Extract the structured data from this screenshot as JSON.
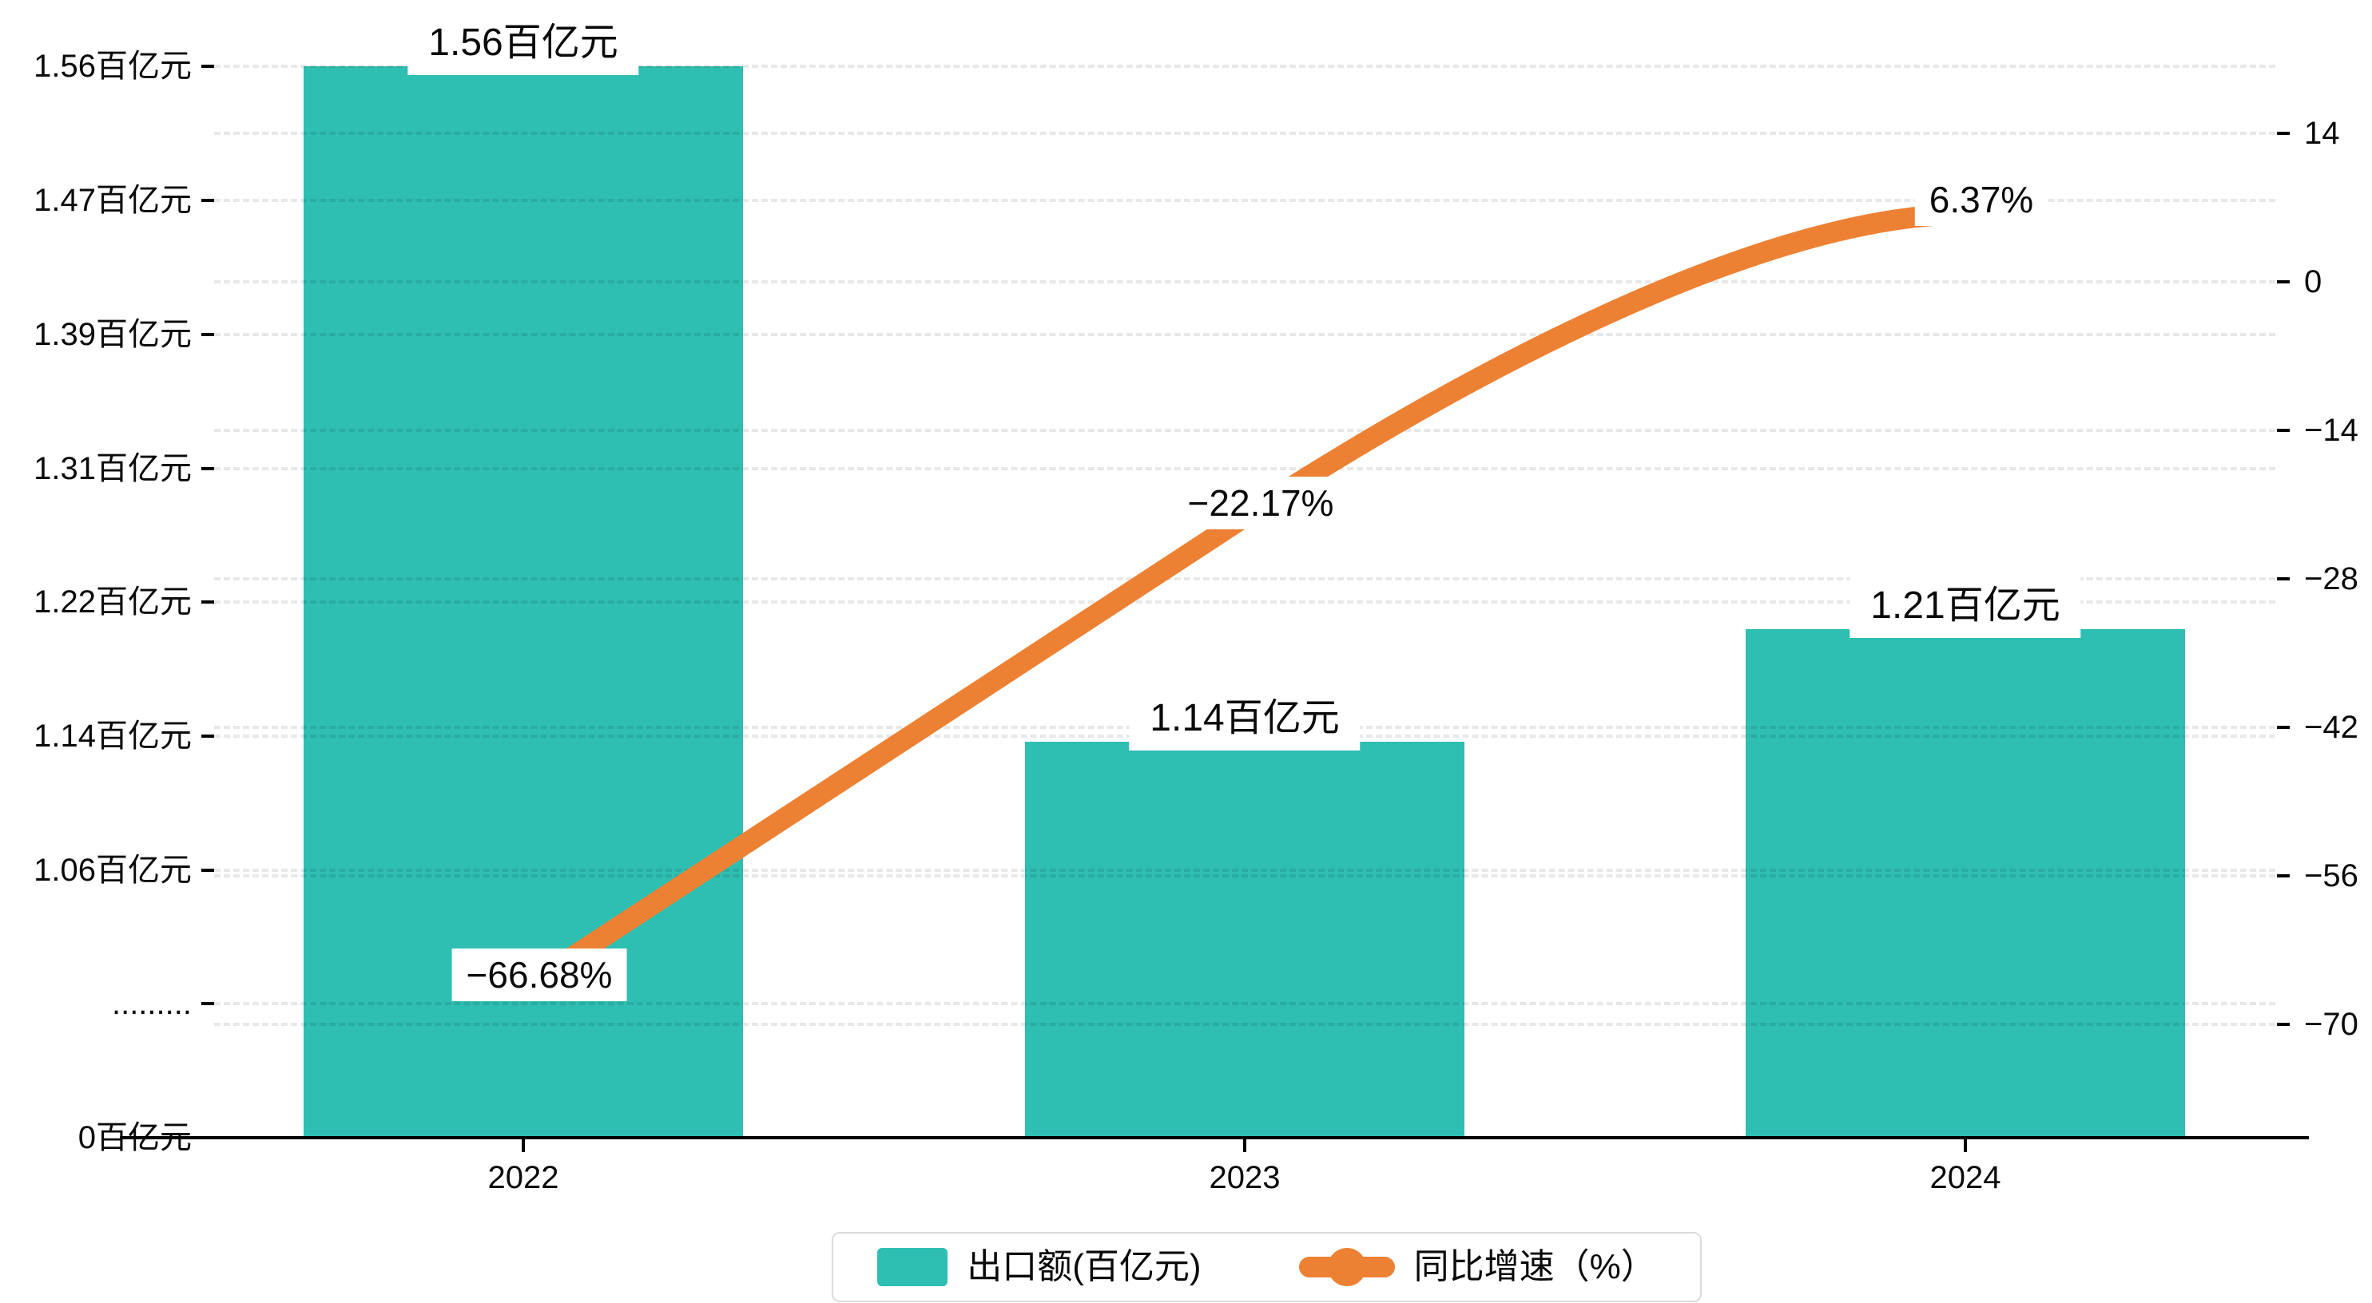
{
  "chart_data": {
    "type": "combo-bar-line",
    "categories": [
      "2022",
      "2023",
      "2024"
    ],
    "series": [
      {
        "name": "出口额(百亿元)",
        "type": "bar",
        "values": [
          1.56,
          1.14,
          1.21
        ],
        "labels": [
          "1.56百亿元",
          "1.14百亿元",
          "1.21百亿元"
        ],
        "color": "#2FBEB2",
        "axis": "left"
      },
      {
        "name": "同比增速（%）",
        "type": "line",
        "values": [
          -66.68,
          -22.17,
          6.37
        ],
        "labels": [
          "−66.68%",
          "−22.17%",
          "6.37%"
        ],
        "color": "#ED8133",
        "axis": "right"
      }
    ],
    "left_axis": {
      "tick_labels": [
        "1.56百亿元",
        "1.47百亿元",
        "1.39百亿元",
        "1.31百亿元",
        "1.22百亿元",
        "1.14百亿元",
        "1.06百亿元",
        ".........",
        "0百亿元"
      ],
      "tick_values": [
        1.56,
        1.47,
        1.39,
        1.31,
        1.22,
        1.14,
        1.06,
        null,
        0
      ],
      "axis_break": true,
      "unit": "百亿元"
    },
    "right_axis": {
      "tick_labels": [
        "14",
        "0",
        "−14",
        "−28",
        "−42",
        "−56",
        "−70"
      ],
      "tick_values": [
        14,
        0,
        -14,
        -28,
        -42,
        -56,
        -70
      ],
      "max": 14,
      "min": -70,
      "step": 14
    },
    "grid": "horizontal-dashed",
    "legend_position": "bottom-center",
    "background_color": "#ffffff",
    "gridline_color": "rgba(0,0,0,0.09)",
    "axis_color": "#000000",
    "label_box_color": "#ffffff"
  }
}
